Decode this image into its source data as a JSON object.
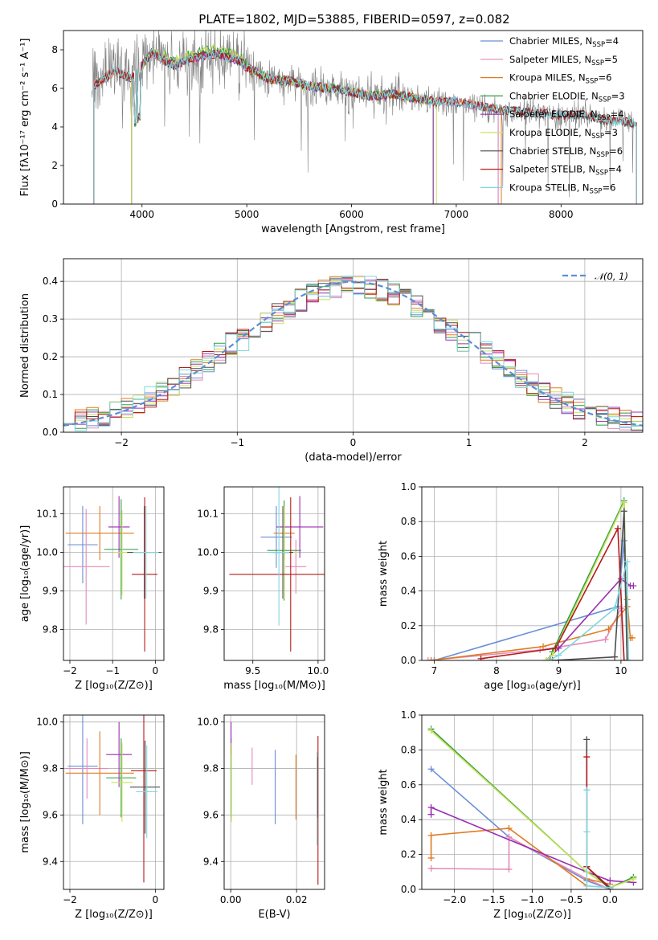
{
  "figure": {
    "title": "PLATE=1802, MJD=53885, FIBERID=0597, z=0.082"
  },
  "colors": {
    "Chabrier MILES": "#6a8fd6",
    "Salpeter MILES": "#e48ab8",
    "Kroupa MILES": "#e07b22",
    "Chabrier ELODIE": "#2f9e44",
    "Salpeter ELODIE": "#9a2fb0",
    "Kroupa ELODIE": "#c8e25a",
    "Chabrier STELIB": "#4d4d4d",
    "Salpeter STELIB": "#b31b1b",
    "Kroupa STELIB": "#7fd6df",
    "data": "#808080",
    "gaussian": "#5b8fd6"
  },
  "chart_data": [
    {
      "id": "spectrum",
      "type": "line",
      "xlabel": "wavelength [Angstrom, rest frame]",
      "ylabel": "Flux [fλ10⁻¹⁷ erg cm⁻² s⁻¹ A⁻¹]",
      "xlim": [
        3250,
        8780
      ],
      "ylim": [
        0,
        9
      ],
      "xticks": [
        4000,
        5000,
        6000,
        7000,
        8000
      ],
      "yticks": [
        0,
        2,
        4,
        6,
        8
      ],
      "legend_position": "top-right",
      "legend": [
        {
          "label": "Chabrier MILES, N",
          "sub": "SSP",
          "suffix": "=4",
          "color_key": "Chabrier MILES"
        },
        {
          "label": "Salpeter MILES, N",
          "sub": "SSP",
          "suffix": "=5",
          "color_key": "Salpeter MILES"
        },
        {
          "label": "Kroupa MILES, N",
          "sub": "SSP",
          "suffix": "=6",
          "color_key": "Kroupa MILES"
        },
        {
          "label": "Chabrier ELODIE, N",
          "sub": "SSP",
          "suffix": "=3",
          "color_key": "Chabrier ELODIE"
        },
        {
          "label": "Salpeter ELODIE, N",
          "sub": "SSP",
          "suffix": "=4",
          "color_key": "Salpeter ELODIE"
        },
        {
          "label": "Kroupa ELODIE, N",
          "sub": "SSP",
          "suffix": "=3",
          "color_key": "Kroupa ELODIE"
        },
        {
          "label": "Chabrier STELIB, N",
          "sub": "SSP",
          "suffix": "=6",
          "color_key": "Chabrier STELIB"
        },
        {
          "label": "Salpeter STELIB, N",
          "sub": "SSP",
          "suffix": "=4",
          "color_key": "Salpeter STELIB"
        },
        {
          "label": "Kroupa STELIB, N",
          "sub": "SSP",
          "suffix": "=6",
          "color_key": "Kroupa STELIB"
        }
      ],
      "continuum": [
        [
          3500,
          5.9
        ],
        [
          3600,
          6.4
        ],
        [
          3750,
          6.9
        ],
        [
          3900,
          6.5
        ],
        [
          4000,
          7.2
        ],
        [
          4100,
          7.9
        ],
        [
          4200,
          7.5
        ],
        [
          4300,
          7.2
        ],
        [
          4500,
          7.6
        ],
        [
          4700,
          7.8
        ],
        [
          4900,
          7.5
        ],
        [
          5000,
          7.1
        ],
        [
          5200,
          6.5
        ],
        [
          5400,
          6.4
        ],
        [
          5600,
          6.1
        ],
        [
          5800,
          6.0
        ],
        [
          6000,
          5.8
        ],
        [
          6200,
          5.6
        ],
        [
          6400,
          5.7
        ],
        [
          6600,
          5.5
        ],
        [
          6800,
          5.3
        ],
        [
          7000,
          5.3
        ],
        [
          7200,
          5.1
        ],
        [
          7400,
          4.9
        ],
        [
          7600,
          4.8
        ],
        [
          7800,
          4.7
        ],
        [
          8000,
          4.6
        ],
        [
          8200,
          4.6
        ],
        [
          8400,
          4.4
        ],
        [
          8700,
          4.2
        ]
      ],
      "model_ranges": {
        "Chabrier MILES": [
          3540,
          7400
        ],
        "Salpeter MILES": [
          3540,
          7400
        ],
        "Kroupa MILES": [
          3540,
          7430
        ],
        "Chabrier ELODIE": [
          3900,
          6780
        ],
        "Salpeter ELODIE": [
          3900,
          6780
        ],
        "Kroupa ELODIE": [
          3900,
          6810
        ],
        "Chabrier STELIB": [
          3540,
          8720
        ],
        "Salpeter STELIB": [
          3540,
          8720
        ],
        "Kroupa STELIB": [
          3540,
          8720
        ]
      }
    },
    {
      "id": "residuals",
      "type": "histogram",
      "xlabel": "(data-model)/error",
      "ylabel": "Normed distribution",
      "xlim": [
        -2.5,
        2.5
      ],
      "ylim": [
        0,
        0.46
      ],
      "xticks": [
        -2,
        -1,
        0,
        1,
        2
      ],
      "yticks": [
        0.0,
        0.1,
        0.2,
        0.3,
        0.4
      ],
      "grid": true,
      "bin_width": 0.1,
      "legend_position": "top-right",
      "legend": [
        {
          "label": "𝒩(0, 1)",
          "color_key": "gaussian",
          "style": "dashed"
        }
      ],
      "gaussian": {
        "mu": 0,
        "sigma": 1
      }
    },
    {
      "id": "age-vs-Z",
      "type": "scatter",
      "xlabel": "Z [log₁₀(Z/Z⊙)]",
      "ylabel": "age  [log₁₀(age/yr)]",
      "xlim": [
        -2.15,
        0.2
      ],
      "ylim": [
        9.72,
        10.17
      ],
      "xticks": [
        -2,
        -1,
        0
      ],
      "yticks": [
        9.8,
        9.9,
        10.0,
        10.1
      ],
      "grid": true,
      "points": [
        {
          "key": "Chabrier MILES",
          "x": -1.7,
          "xerr": 0.35,
          "y": 10.02,
          "yerr": 0.1
        },
        {
          "key": "Salpeter MILES",
          "x": -1.62,
          "xerr": 0.55,
          "y": 9.963,
          "yerr": 0.15
        },
        {
          "key": "Kroupa MILES",
          "x": -1.3,
          "xerr": 0.8,
          "y": 10.05,
          "yerr": 0.07
        },
        {
          "key": "Chabrier ELODIE",
          "x": -0.8,
          "xerr": 0.4,
          "y": 10.008,
          "yerr": 0.13
        },
        {
          "key": "Salpeter ELODIE",
          "x": -0.85,
          "xerr": 0.25,
          "y": 10.066,
          "yerr": 0.08
        },
        {
          "key": "Kroupa ELODIE",
          "x": -0.78,
          "xerr": 0.2,
          "y": 10.0,
          "yerr": 0.11
        },
        {
          "key": "Chabrier STELIB",
          "x": -0.26,
          "xerr": 0.4,
          "y": 10.0,
          "yerr": 0.12
        },
        {
          "key": "Salpeter STELIB",
          "x": -0.25,
          "xerr": 0.3,
          "y": 9.943,
          "yerr": 0.2
        },
        {
          "key": "Kroupa STELIB",
          "x": -0.22,
          "xerr": 0.3,
          "y": 10.0,
          "yerr": 0.12
        }
      ]
    },
    {
      "id": "age-vs-mass",
      "type": "scatter",
      "xlabel": "mass [log₁₀(M/M⊙)]",
      "ylabel": "",
      "xlim": [
        9.28,
        10.05
      ],
      "ylim": [
        9.72,
        10.17
      ],
      "xticks": [
        9.5,
        10.0
      ],
      "yticks": [
        9.8,
        9.9,
        10.0,
        10.1
      ],
      "grid": true,
      "points": [
        {
          "key": "Chabrier MILES",
          "x": 9.68,
          "xerr": 0.12,
          "y": 10.04,
          "yerr": 0.08
        },
        {
          "key": "Salpeter MILES",
          "x": 9.83,
          "xerr": 0.08,
          "y": 9.963,
          "yerr": 0.07
        },
        {
          "key": "Kroupa MILES",
          "x": 9.74,
          "xerr": 0.08,
          "y": 10.05,
          "yerr": 0.07
        },
        {
          "key": "Chabrier ELODIE",
          "x": 9.74,
          "xerr": 0.13,
          "y": 10.005,
          "yerr": 0.13
        },
        {
          "key": "Salpeter ELODIE",
          "x": 9.86,
          "xerr": 0.18,
          "y": 10.066,
          "yerr": 0.08
        },
        {
          "key": "Kroupa ELODIE",
          "x": 9.74,
          "xerr": 0.1,
          "y": 10.0,
          "yerr": 0.12
        },
        {
          "key": "Chabrier STELIB",
          "x": 9.73,
          "xerr": 0.08,
          "y": 10.0,
          "yerr": 0.12
        },
        {
          "key": "Salpeter STELIB",
          "x": 9.79,
          "xerr": 0.47,
          "y": 9.943,
          "yerr": 0.2
        },
        {
          "key": "Kroupa STELIB",
          "x": 9.7,
          "xerr": 0.08,
          "y": 10.0,
          "yerr": 0.19
        }
      ]
    },
    {
      "id": "mass-vs-Z",
      "type": "scatter",
      "xlabel": "Z [log₁₀(Z/Z⊙)]",
      "ylabel": "mass [log₁₀(M/M⊙)]",
      "xlim": [
        -2.15,
        0.2
      ],
      "ylim": [
        9.28,
        10.03
      ],
      "xticks": [
        -2,
        0
      ],
      "yticks": [
        9.4,
        9.6,
        9.8,
        10.0
      ],
      "grid": true,
      "points": [
        {
          "key": "Chabrier MILES",
          "x": -1.7,
          "xerr": 0.35,
          "y": 9.81,
          "yerr": 0.25
        },
        {
          "key": "Salpeter MILES",
          "x": -1.6,
          "xerr": 0.5,
          "y": 9.8,
          "yerr": 0.13
        },
        {
          "key": "Kroupa MILES",
          "x": -1.3,
          "xerr": 0.8,
          "y": 9.78,
          "yerr": 0.18
        },
        {
          "key": "Chabrier ELODIE",
          "x": -0.8,
          "xerr": 0.35,
          "y": 9.76,
          "yerr": 0.17
        },
        {
          "key": "Salpeter ELODIE",
          "x": -0.85,
          "xerr": 0.3,
          "y": 9.86,
          "yerr": 0.14
        },
        {
          "key": "Kroupa ELODIE",
          "x": -0.78,
          "xerr": 0.25,
          "y": 9.74,
          "yerr": 0.17
        },
        {
          "key": "Chabrier STELIB",
          "x": -0.24,
          "xerr": 0.35,
          "y": 9.72,
          "yerr": 0.2
        },
        {
          "key": "Salpeter STELIB",
          "x": -0.27,
          "xerr": 0.3,
          "y": 9.79,
          "yerr": 0.48
        },
        {
          "key": "Kroupa STELIB",
          "x": -0.2,
          "xerr": 0.25,
          "y": 9.7,
          "yerr": 0.2
        }
      ]
    },
    {
      "id": "mass-vs-ebv",
      "type": "scatter",
      "xlabel": "E(B-V)",
      "ylabel": "",
      "xlim": [
        -0.002,
        0.0285
      ],
      "ylim": [
        9.28,
        10.03
      ],
      "xticks": [
        0.0,
        0.02
      ],
      "yticks": [
        9.4,
        9.6,
        9.8,
        10.0
      ],
      "grid": true,
      "points": [
        {
          "key": "Chabrier MILES",
          "x": 0.0135,
          "y": 9.72,
          "yerr": 0.16
        },
        {
          "key": "Salpeter MILES",
          "x": 0.0065,
          "y": 9.81,
          "yerr": 0.08
        },
        {
          "key": "Kroupa MILES",
          "x": 0.0198,
          "y": 9.72,
          "yerr": 0.14
        },
        {
          "key": "Chabrier ELODIE",
          "x": 0.0001,
          "y": 9.76,
          "yerr": 0.17
        },
        {
          "key": "Salpeter ELODIE",
          "x": 0.0001,
          "y": 9.93,
          "yerr": 0.07
        },
        {
          "key": "Kroupa ELODIE",
          "x": 0.0002,
          "y": 9.74,
          "yerr": 0.17
        },
        {
          "key": "Chabrier STELIB",
          "x": 0.0263,
          "y": 9.72,
          "yerr": 0.13
        },
        {
          "key": "Salpeter STELIB",
          "x": 0.0265,
          "y": 9.62,
          "yerr": 0.32
        },
        {
          "key": "Kroupa STELIB",
          "x": 0.0262,
          "y": 9.67,
          "yerr": 0.2
        }
      ]
    },
    {
      "id": "weight-vs-age",
      "type": "line",
      "xlabel": "age  [log₁₀(age/yr)]",
      "ylabel": "mass weight",
      "xlim": [
        6.8,
        10.35
      ],
      "ylim": [
        0,
        1.0
      ],
      "xticks": [
        7,
        8,
        9,
        10
      ],
      "yticks": [
        0.0,
        0.2,
        0.4,
        0.6,
        0.8,
        1.0
      ],
      "grid": true,
      "series": [
        {
          "key": "Chabrier MILES",
          "points": [
            [
              7.0,
              0.0
            ],
            [
              9.95,
              0.31
            ],
            [
              10.05,
              0.69
            ],
            [
              10.1,
              0.0
            ]
          ]
        },
        {
          "key": "Salpeter MILES",
          "points": [
            [
              6.9,
              0.0
            ],
            [
              8.7,
              0.06
            ],
            [
              9.75,
              0.12
            ],
            [
              10.0,
              0.3
            ],
            [
              10.05,
              0.0
            ]
          ]
        },
        {
          "key": "Kroupa MILES",
          "points": [
            [
              6.95,
              0.0
            ],
            [
              8.75,
              0.08
            ],
            [
              9.8,
              0.18
            ],
            [
              10.1,
              0.31
            ],
            [
              10.1,
              0.35
            ],
            [
              10.15,
              0.13
            ],
            [
              10.18,
              0.13
            ]
          ]
        },
        {
          "key": "Chabrier ELODIE",
          "points": [
            [
              8.85,
              0.0
            ],
            [
              8.9,
              0.05
            ],
            [
              10.05,
              0.92
            ],
            [
              10.1,
              0.0
            ]
          ]
        },
        {
          "key": "Salpeter ELODIE",
          "points": [
            [
              8.8,
              0.0
            ],
            [
              9.0,
              0.07
            ],
            [
              10.0,
              0.47
            ],
            [
              10.15,
              0.43
            ],
            [
              10.2,
              0.43
            ]
          ]
        },
        {
          "key": "Kroupa ELODIE",
          "points": [
            [
              8.8,
              0.0
            ],
            [
              8.9,
              0.03
            ],
            [
              10.05,
              0.91
            ],
            [
              10.1,
              0.0
            ]
          ]
        },
        {
          "key": "Chabrier STELIB",
          "points": [
            [
              8.9,
              0.0
            ],
            [
              9.9,
              0.02
            ],
            [
              10.05,
              0.86
            ],
            [
              10.1,
              0.0
            ]
          ]
        },
        {
          "key": "Salpeter STELIB",
          "points": [
            [
              7.75,
              0.01
            ],
            [
              8.95,
              0.07
            ],
            [
              9.95,
              0.76
            ],
            [
              10.05,
              0.0
            ]
          ]
        },
        {
          "key": "Kroupa STELIB",
          "points": [
            [
              8.85,
              0.0
            ],
            [
              9.0,
              0.03
            ],
            [
              9.9,
              0.3
            ],
            [
              10.1,
              0.57
            ],
            [
              10.12,
              0.0
            ]
          ]
        }
      ]
    },
    {
      "id": "weight-vs-Z",
      "type": "line",
      "xlabel": "Z [log₁₀(Z/Z⊙)]",
      "ylabel": "mass weight",
      "xlim": [
        -2.42,
        0.42
      ],
      "ylim": [
        0,
        1.0
      ],
      "xticks": [
        -2.0,
        -1.5,
        -1.0,
        -0.5,
        0.0
      ],
      "yticks": [
        0.0,
        0.2,
        0.4,
        0.6,
        0.8,
        1.0
      ],
      "grid": true,
      "series": [
        {
          "key": "Chabrier MILES",
          "points": [
            [
              -2.3,
              0.69
            ],
            [
              -1.3,
              0.3
            ],
            [
              -0.3,
              0.05
            ],
            [
              0.0,
              0.0
            ]
          ]
        },
        {
          "key": "Salpeter MILES",
          "points": [
            [
              -2.3,
              0.12
            ],
            [
              -1.3,
              0.115
            ],
            [
              -1.3,
              0.3
            ],
            [
              -0.3,
              0.06
            ],
            [
              0.0,
              0.0
            ]
          ]
        },
        {
          "key": "Kroupa MILES",
          "points": [
            [
              -2.3,
              0.18
            ],
            [
              -2.3,
              0.31
            ],
            [
              -1.3,
              0.35
            ],
            [
              -0.3,
              0.02
            ],
            [
              -0.3,
              0.06
            ],
            [
              0.0,
              0.03
            ]
          ]
        },
        {
          "key": "Chabrier ELODIE",
          "points": [
            [
              -2.3,
              0.92
            ],
            [
              -0.3,
              0.1
            ],
            [
              0.0,
              0.01
            ],
            [
              0.3,
              0.07
            ]
          ]
        },
        {
          "key": "Salpeter ELODIE",
          "points": [
            [
              -2.3,
              0.43
            ],
            [
              -2.3,
              0.47
            ],
            [
              -0.3,
              0.1
            ],
            [
              0.0,
              0.05
            ],
            [
              0.3,
              0.04
            ]
          ]
        },
        {
          "key": "Kroupa ELODIE",
          "points": [
            [
              -2.3,
              0.91
            ],
            [
              -0.3,
              0.1
            ],
            [
              0.0,
              0.01
            ],
            [
              0.3,
              0.06
            ]
          ]
        },
        {
          "key": "Chabrier STELIB",
          "points": [
            [
              -0.3,
              0.86
            ],
            [
              -0.3,
              0.13
            ],
            [
              0.0,
              0.0
            ]
          ]
        },
        {
          "key": "Salpeter STELIB",
          "points": [
            [
              -0.3,
              0.76
            ],
            [
              -0.3,
              0.13
            ],
            [
              0.0,
              0.01
            ]
          ]
        },
        {
          "key": "Kroupa STELIB",
          "points": [
            [
              -0.3,
              0.57
            ],
            [
              -0.3,
              0.33
            ],
            [
              -0.3,
              0.02
            ],
            [
              0.0,
              0.01
            ]
          ]
        }
      ]
    }
  ]
}
